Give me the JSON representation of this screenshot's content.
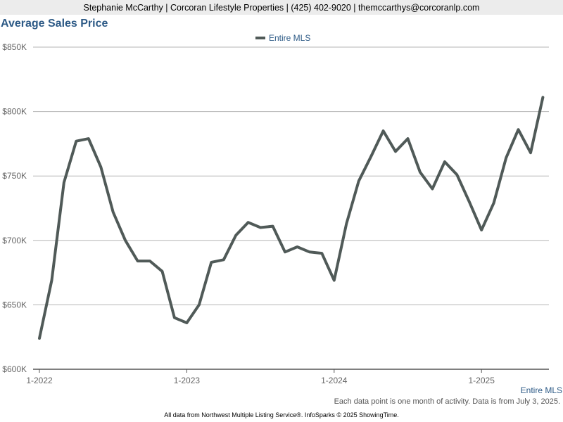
{
  "header": {
    "contact": "Stephanie McCarthy | Corcoran Lifestyle Properties | (425) 402-9020 | themccarthys@corcoranlp.com"
  },
  "chart_data": {
    "type": "line",
    "title": "Average Sales Price",
    "xlabel": "",
    "ylabel": "",
    "y_tick_labels": [
      "$600K",
      "$650K",
      "$700K",
      "$750K",
      "$800K",
      "$850K"
    ],
    "y_ticks": [
      600000,
      650000,
      700000,
      750000,
      800000,
      850000
    ],
    "ylim": [
      600000,
      850000
    ],
    "x_tick_labels": [
      "1-2022",
      "1-2023",
      "1-2024",
      "1-2025"
    ],
    "grid": "horizontal",
    "legend_position": "top-center",
    "series": [
      {
        "name": "Entire MLS",
        "color": "#505a58",
        "x": [
          "2022-01",
          "2022-02",
          "2022-03",
          "2022-04",
          "2022-05",
          "2022-06",
          "2022-07",
          "2022-08",
          "2022-09",
          "2022-10",
          "2022-11",
          "2022-12",
          "2023-01",
          "2023-02",
          "2023-03",
          "2023-04",
          "2023-05",
          "2023-06",
          "2023-07",
          "2023-08",
          "2023-09",
          "2023-10",
          "2023-11",
          "2023-12",
          "2024-01",
          "2024-02",
          "2024-03",
          "2024-04",
          "2024-05",
          "2024-06",
          "2024-07",
          "2024-08",
          "2024-09",
          "2024-10",
          "2024-11",
          "2024-12",
          "2025-01",
          "2025-02",
          "2025-03",
          "2025-04",
          "2025-05",
          "2025-06"
        ],
        "values": [
          624000,
          669000,
          745000,
          777000,
          779000,
          757000,
          722000,
          700000,
          684000,
          684000,
          676000,
          640000,
          636000,
          650000,
          683000,
          685000,
          704000,
          714000,
          710000,
          711000,
          691000,
          695000,
          691000,
          690000,
          669000,
          713000,
          746000,
          765000,
          785000,
          769000,
          779000,
          753000,
          740000,
          761000,
          751000,
          730000,
          708000,
          729000,
          764000,
          786000,
          768000,
          811000
        ]
      }
    ]
  },
  "footer": {
    "series_label": "Entire MLS",
    "note": "Each data point is one month of activity. Data is from July 3, 2025.",
    "credit": "All data from Northwest Multiple Listing Service®. InfoSparks © 2025 ShowingTime."
  }
}
